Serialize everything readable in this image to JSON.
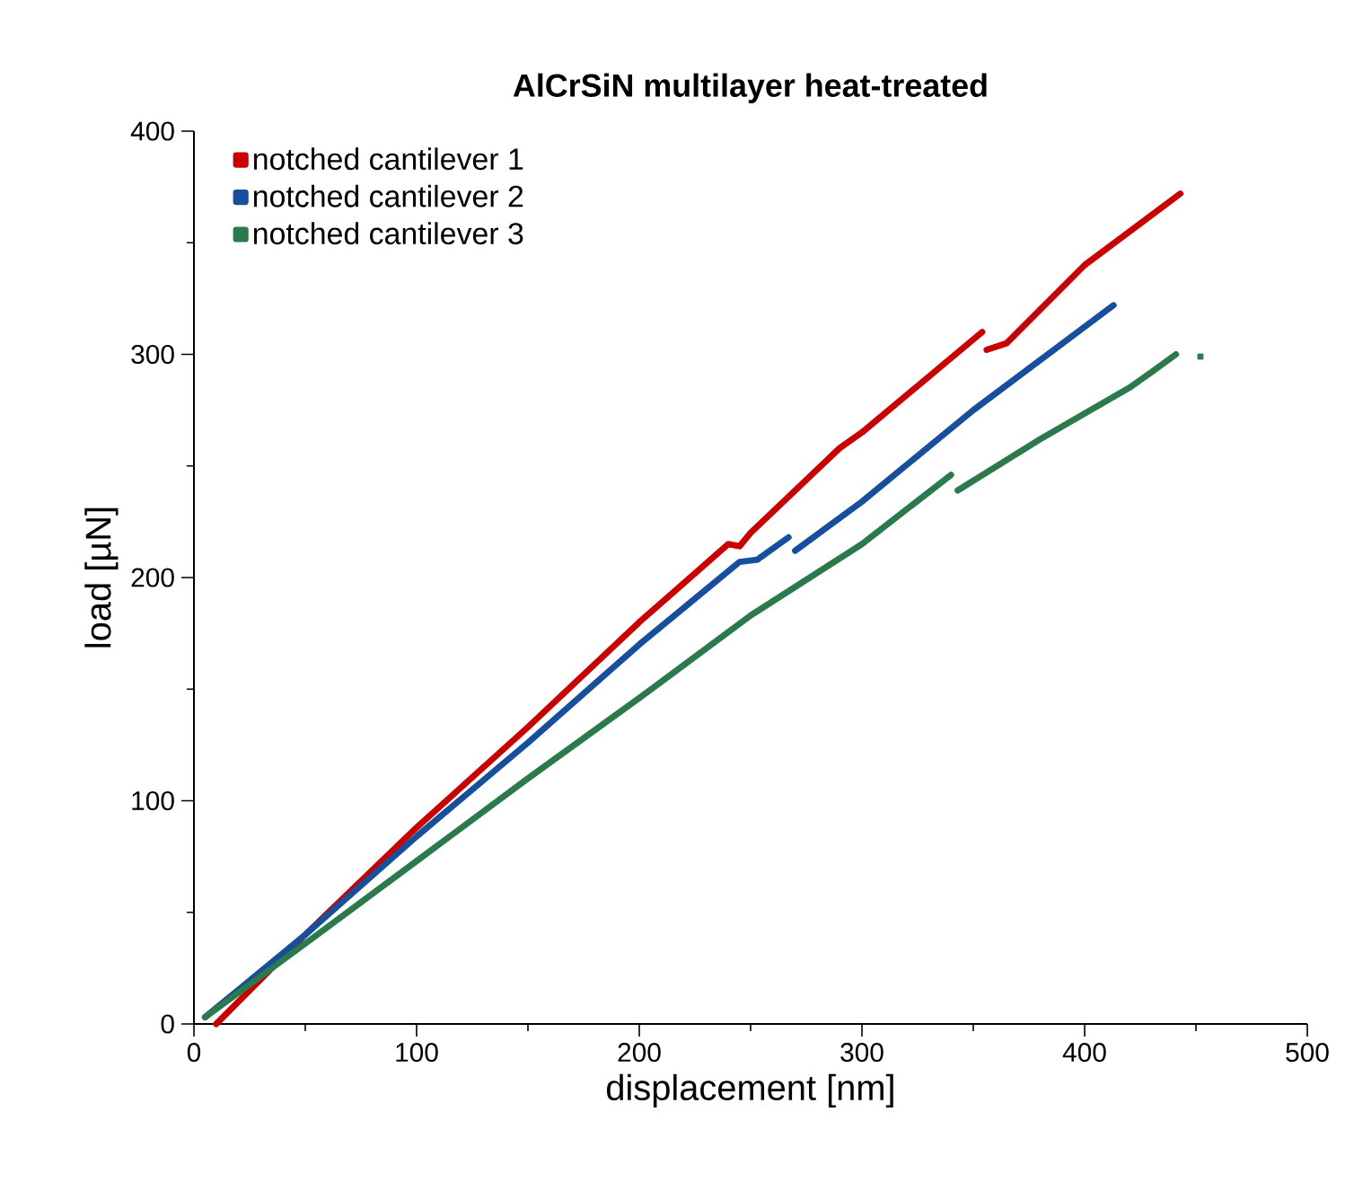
{
  "chart_data": {
    "type": "line",
    "title": "AlCrSiN multilayer heat-treated",
    "xlabel": "displacement [nm]",
    "ylabel": "load [µN]",
    "xlim": [
      0,
      500
    ],
    "ylim": [
      0,
      400
    ],
    "xticks": [
      0,
      100,
      200,
      300,
      400,
      500
    ],
    "yticks": [
      0,
      100,
      200,
      300,
      400
    ],
    "legend": "top left",
    "grid": false,
    "series": [
      {
        "name": "notched cantilever 1",
        "color": "#cc0000",
        "x": [
          10,
          50,
          100,
          150,
          200,
          240,
          245,
          250,
          290,
          300,
          354,
          355,
          356,
          365,
          380,
          400,
          443
        ],
        "values": [
          0,
          40,
          88,
          133,
          180,
          215,
          214,
          220,
          258,
          265,
          310,
          null,
          302,
          305,
          320,
          340,
          372
        ]
      },
      {
        "name": "notched cantilever 2",
        "color": "#154f9e",
        "x": [
          5,
          50,
          100,
          150,
          200,
          245,
          253,
          267,
          268,
          270,
          300,
          350,
          413
        ],
        "values": [
          3,
          40,
          84,
          126,
          170,
          207,
          208,
          218,
          null,
          212,
          234,
          275,
          322
        ]
      },
      {
        "name": "notched cantilever 3",
        "color": "#2a7a4b",
        "x": [
          5,
          50,
          100,
          150,
          200,
          250,
          300,
          340,
          341,
          343,
          380,
          420,
          430,
          441
        ],
        "values": [
          3,
          36,
          73,
          110,
          146,
          183,
          215,
          246,
          null,
          239,
          262,
          285,
          292,
          300
        ]
      },
      {
        "type": "scatter",
        "color": "#2a7a4b",
        "x": [
          452
        ],
        "values": [
          299
        ]
      }
    ]
  }
}
